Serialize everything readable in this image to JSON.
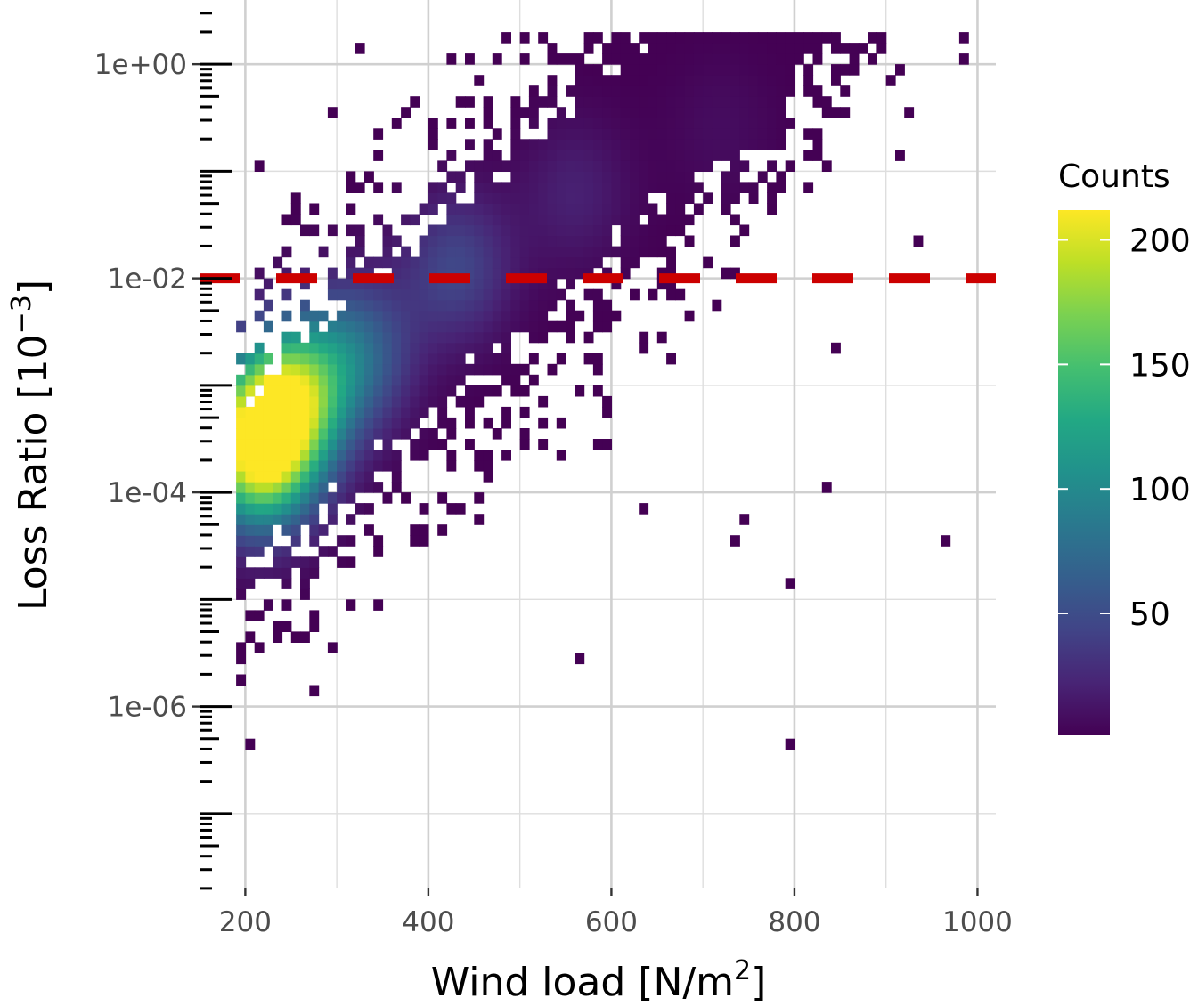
{
  "chart_data": {
    "type": "heatmap",
    "xlabel": "Wind load [N/m",
    "xlabel_sup": "2",
    "xlabel_end": "]",
    "ylabel": "Loss Ratio [10",
    "ylabel_sup": "−3",
    "ylabel_end": "]",
    "x_range": [
      150,
      1020
    ],
    "x_ticks": [
      200,
      400,
      600,
      800,
      1000
    ],
    "x_tick_labels": [
      "200",
      "400",
      "600",
      "800",
      "1000"
    ],
    "y_scale": "log10",
    "y_range_log10": [
      -7.7,
      0.6
    ],
    "y_ticks_log10": [
      0,
      -2,
      -4,
      -6
    ],
    "y_tick_labels": [
      "1e+00",
      "1e-02",
      "1e-04",
      "1e-06"
    ],
    "reference_line": {
      "y": 0.01,
      "style": "dashed",
      "color": "#cc0000"
    },
    "grid": true,
    "colormap": "viridis",
    "legend": {
      "title": "Counts",
      "placement": "right",
      "range": [
        1,
        212
      ],
      "ticks": [
        200,
        150,
        100,
        50
      ],
      "tick_labels": [
        "200",
        "150",
        "100",
        "50"
      ]
    },
    "density": {
      "bin_width_x": 10,
      "bin_width_log10_y": 0.1,
      "centers": [
        {
          "x": 215,
          "log10y": -3.6,
          "peak": 212
        },
        {
          "x": 250,
          "log10y": -3.1,
          "peak": 150
        },
        {
          "x": 320,
          "log10y": -2.7,
          "peak": 70
        },
        {
          "x": 430,
          "log10y": -1.9,
          "peak": 45
        },
        {
          "x": 560,
          "log10y": -1.2,
          "peak": 20
        },
        {
          "x": 720,
          "log10y": -0.6,
          "peak": 8
        }
      ],
      "trend": {
        "x0": 200,
        "log10y0": -3.9,
        "slope_per_100": 0.75,
        "spread": 1.25
      }
    }
  }
}
